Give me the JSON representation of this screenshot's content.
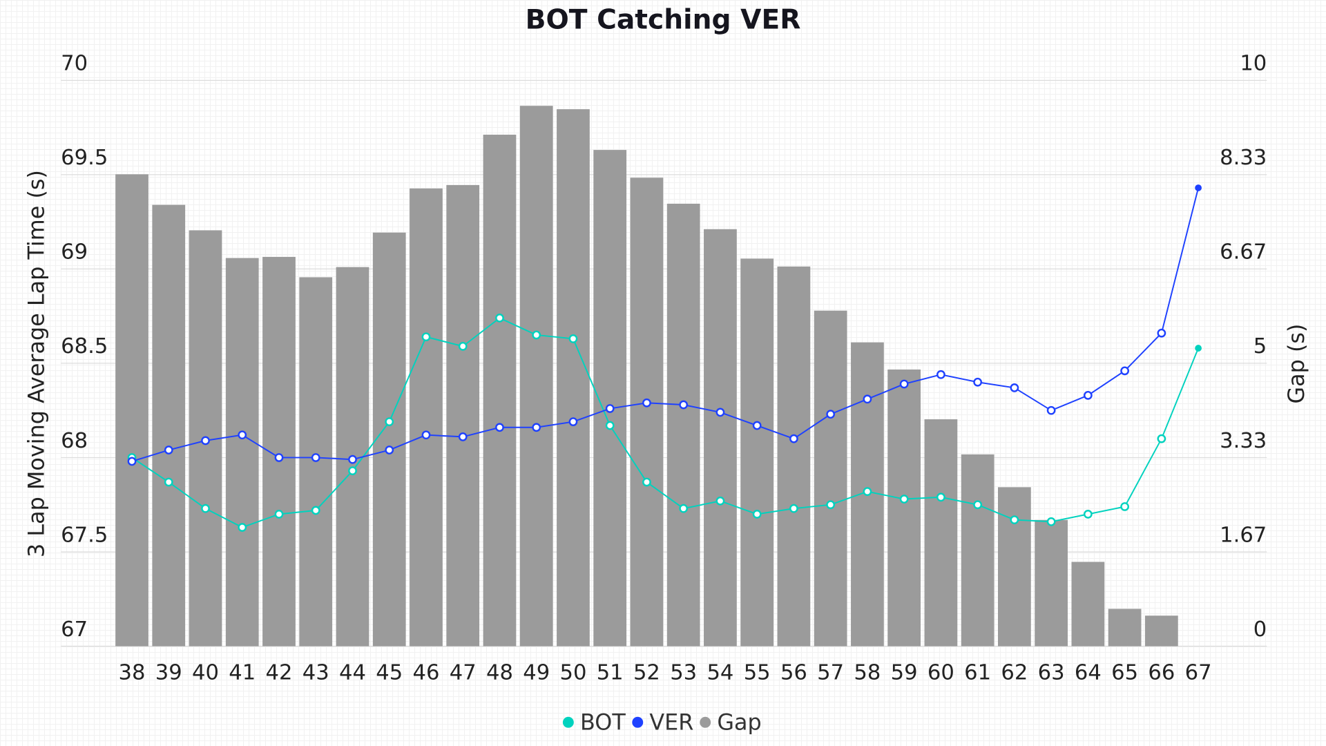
{
  "chart_data": {
    "type": "bar+line",
    "title": "BOT Catching VER",
    "xlabel": "",
    "ylabel_left": "3 Lap Moving Average Lap Time (s)",
    "ylabel_right": "Gap (s)",
    "ylim_left": [
      67,
      70
    ],
    "ylim_right": [
      0,
      10
    ],
    "yticks_left": [
      "67",
      "67.5",
      "68",
      "68.5",
      "69",
      "69.5",
      "70"
    ],
    "yticks_right": [
      "0",
      "1.67",
      "3.33",
      "5",
      "6.67",
      "8.33",
      "10"
    ],
    "grid": true,
    "legend_position": "bottom",
    "categories": [
      "38",
      "39",
      "40",
      "41",
      "42",
      "43",
      "44",
      "45",
      "46",
      "47",
      "48",
      "49",
      "50",
      "51",
      "52",
      "53",
      "54",
      "55",
      "56",
      "57",
      "58",
      "59",
      "60",
      "61",
      "62",
      "63",
      "64",
      "65",
      "66",
      "67"
    ],
    "series": [
      {
        "name": "BOT",
        "type": "line",
        "axis": "left",
        "color": "#00d2be",
        "values": [
          68.0,
          67.87,
          67.73,
          67.63,
          67.7,
          67.72,
          67.93,
          68.19,
          68.64,
          68.59,
          68.74,
          68.65,
          68.63,
          68.17,
          67.87,
          67.73,
          67.77,
          67.7,
          67.73,
          67.75,
          67.82,
          67.78,
          67.79,
          67.75,
          67.67,
          67.66,
          67.7,
          67.74,
          68.1,
          68.58
        ]
      },
      {
        "name": "VER",
        "type": "line",
        "axis": "left",
        "color": "#1e41ff",
        "values": [
          67.98,
          68.04,
          68.09,
          68.12,
          68.0,
          68.0,
          67.99,
          68.04,
          68.12,
          68.11,
          68.16,
          68.16,
          68.19,
          68.26,
          68.29,
          68.28,
          68.24,
          68.17,
          68.1,
          68.23,
          68.31,
          68.39,
          68.44,
          68.4,
          68.37,
          68.25,
          68.33,
          68.46,
          68.66,
          69.43
        ]
      },
      {
        "name": "Gap",
        "type": "bar",
        "axis": "right",
        "color": "#9b9b9b",
        "values": [
          8.34,
          7.8,
          7.35,
          6.86,
          6.88,
          6.52,
          6.7,
          7.31,
          8.09,
          8.15,
          9.04,
          9.55,
          9.49,
          8.77,
          8.28,
          7.82,
          7.37,
          6.85,
          6.71,
          5.93,
          5.37,
          4.89,
          4.01,
          3.39,
          2.81,
          2.23,
          1.49,
          0.66,
          0.54,
          null
        ]
      }
    ]
  }
}
